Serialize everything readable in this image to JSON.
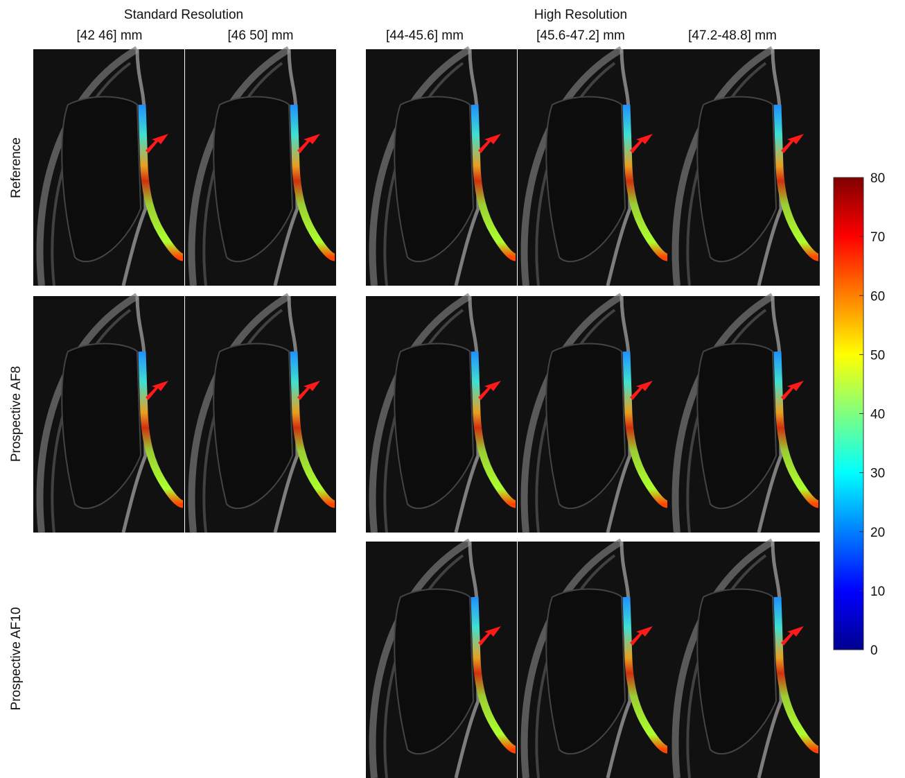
{
  "headers": {
    "standard": "Standard Resolution",
    "high": "High Resolution"
  },
  "columns": [
    "[42 46] mm",
    "[46 50] mm",
    "[44-45.6] mm",
    "[45.6-47.2] mm",
    "[47.2-48.8] mm"
  ],
  "rows": [
    "Reference",
    "Prospective AF8",
    "Prospective AF10"
  ],
  "colorbar": {
    "lim": [
      0,
      80
    ],
    "ticks": [
      0,
      10,
      20,
      30,
      40,
      50,
      60,
      70,
      80
    ]
  }
}
